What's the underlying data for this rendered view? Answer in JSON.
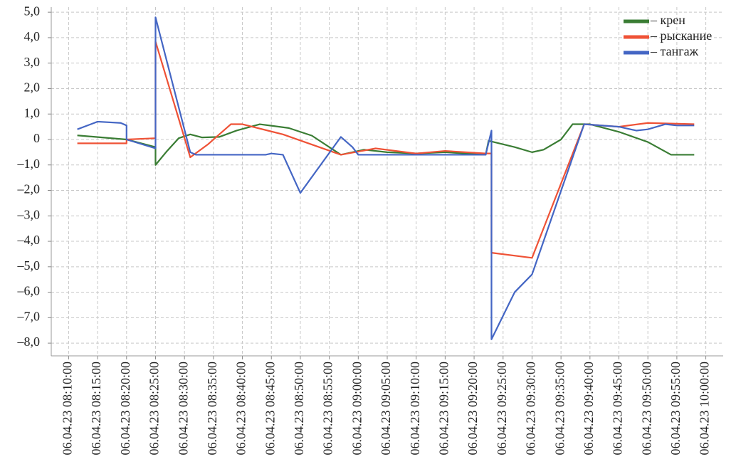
{
  "chart_data": {
    "type": "line",
    "xlim": [
      "06.04.23 08:07:00",
      "06.04.23 10:03:00"
    ],
    "xticks": [
      "06.04.23 08:10:00",
      "06.04.23 08:15:00",
      "06.04.23 08:20:00",
      "06.04.23 08:25:00",
      "06.04.23 08:30:00",
      "06.04.23 08:35:00",
      "06.04.23 08:40:00",
      "06.04.23 08:45:00",
      "06.04.23 08:50:00",
      "06.04.23 08:55:00",
      "06.04.23 09:00:00",
      "06.04.23 09:05:00",
      "06.04.23 09:10:00",
      "06.04.23 09:15:00",
      "06.04.23 09:20:00",
      "06.04.23 09:25:00",
      "06.04.23 09:30:00",
      "06.04.23 09:35:00",
      "06.04.23 09:40:00",
      "06.04.23 09:45:00",
      "06.04.23 09:50:00",
      "06.04.23 09:55:00",
      "06.04.23 10:00:00"
    ],
    "ylim": [
      -8.5,
      5.2
    ],
    "yticks": [
      {
        "value": 5,
        "label": "5,0"
      },
      {
        "value": 4,
        "label": "4,0"
      },
      {
        "value": 3,
        "label": "3,0"
      },
      {
        "value": 2,
        "label": "2,0"
      },
      {
        "value": 1,
        "label": "1,0"
      },
      0,
      {
        "value": -1,
        "label": "–1,0"
      },
      {
        "value": -2,
        "label": "–2,0"
      },
      {
        "value": -3,
        "label": "–3,0"
      },
      {
        "value": -4,
        "label": "–4,0"
      },
      {
        "value": -5,
        "label": "–5,0"
      },
      {
        "value": -6,
        "label": "–6,0"
      },
      {
        "value": -7,
        "label": "–7,0"
      },
      {
        "value": -8,
        "label": "–8,0"
      }
    ],
    "grid": true,
    "legend": "upper right",
    "series": [
      {
        "name": "– крен",
        "color": "#3a7d34",
        "x": [
          "06.04.23 08:11:30",
          "06.04.23 08:20:00",
          "06.04.23 08:25:00",
          "06.04.23 08:25:00",
          "06.04.23 08:27:00",
          "06.04.23 08:29:00",
          "06.04.23 08:31:00",
          "06.04.23 08:33:00",
          "06.04.23 08:36:00",
          "06.04.23 08:39:00",
          "06.04.23 08:43:00",
          "06.04.23 08:48:00",
          "06.04.23 08:52:00",
          "06.04.23 08:57:00",
          "06.04.23 09:01:00",
          "06.04.23 09:05:00",
          "06.04.23 09:10:00",
          "06.04.23 09:15:00",
          "06.04.23 09:22:00",
          "06.04.23 09:22:30",
          "06.04.23 09:27:00",
          "06.04.23 09:30:00",
          "06.04.23 09:32:00",
          "06.04.23 09:35:00",
          "06.04.23 09:37:00",
          "06.04.23 09:40:00",
          "06.04.23 09:45:00",
          "06.04.23 09:50:00",
          "06.04.23 09:54:00",
          "06.04.23 09:56:00",
          "06.04.23 09:58:00"
        ],
        "values": [
          0.16,
          0.0,
          -0.3,
          -1.0,
          -0.45,
          0.05,
          0.2,
          0.08,
          0.1,
          0.35,
          0.6,
          0.45,
          0.15,
          -0.6,
          -0.4,
          -0.5,
          -0.55,
          -0.5,
          -0.6,
          -0.05,
          -0.3,
          -0.5,
          -0.4,
          0.0,
          0.6,
          0.6,
          0.3,
          -0.1,
          -0.6,
          -0.6,
          -0.6
        ]
      },
      {
        "name": "– рыскание",
        "color": "#ef5236",
        "x": [
          "06.04.23 08:11:30",
          "06.04.23 08:20:00",
          "06.04.23 08:20:00",
          "06.04.23 08:25:00",
          "06.04.23 08:25:00",
          "06.04.23 08:31:00",
          "06.04.23 08:34:00",
          "06.04.23 08:38:00",
          "06.04.23 08:40:00",
          "06.04.23 08:47:00",
          "06.04.23 08:57:00",
          "06.04.23 09:03:00",
          "06.04.23 09:10:00",
          "06.04.23 09:15:00",
          "06.04.23 09:22:00",
          "06.04.23 09:23:00",
          "06.04.23 09:23:00",
          "06.04.23 09:30:00",
          "06.04.23 09:39:00",
          "06.04.23 09:45:00",
          "06.04.23 09:50:00",
          "06.04.23 09:58:00"
        ],
        "values": [
          -0.15,
          -0.15,
          0.0,
          0.05,
          3.85,
          -0.7,
          -0.2,
          0.6,
          0.6,
          0.2,
          -0.6,
          -0.35,
          -0.55,
          -0.45,
          -0.55,
          -0.55,
          -4.45,
          -4.65,
          0.6,
          0.5,
          0.65,
          0.6
        ]
      },
      {
        "name": "– тангаж",
        "color": "#4466c4",
        "x": [
          "06.04.23 08:11:30",
          "06.04.23 08:15:00",
          "06.04.23 08:19:00",
          "06.04.23 08:20:00",
          "06.04.23 08:20:00",
          "06.04.23 08:25:00",
          "06.04.23 08:25:00",
          "06.04.23 08:31:00",
          "06.04.23 08:32:00",
          "06.04.23 08:44:00",
          "06.04.23 08:45:00",
          "06.04.23 08:47:00",
          "06.04.23 08:50:00",
          "06.04.23 08:57:00",
          "06.04.23 08:59:00",
          "06.04.23 09:00:00",
          "06.04.23 09:22:00",
          "06.04.23 09:23:00",
          "06.04.23 09:23:00",
          "06.04.23 09:27:00",
          "06.04.23 09:30:00",
          "06.04.23 09:39:00",
          "06.04.23 09:45:00",
          "06.04.23 09:48:00",
          "06.04.23 09:50:00",
          "06.04.23 09:53:00",
          "06.04.23 09:55:00",
          "06.04.23 09:58:00"
        ],
        "values": [
          0.4,
          0.7,
          0.65,
          0.55,
          0.0,
          -0.35,
          4.8,
          -0.5,
          -0.6,
          -0.6,
          -0.55,
          -0.6,
          -2.1,
          0.1,
          -0.3,
          -0.6,
          -0.6,
          0.35,
          -7.85,
          -6.0,
          -5.3,
          0.6,
          0.5,
          0.35,
          0.4,
          0.6,
          0.55,
          0.55
        ]
      }
    ]
  }
}
